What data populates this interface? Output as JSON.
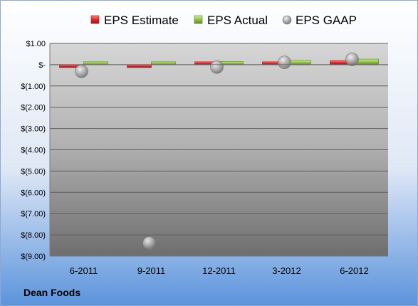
{
  "company_label": "Dean Foods",
  "chart_data": {
    "type": "bar",
    "categories": [
      "6-2011",
      "9-2011",
      "12-2011",
      "3-2012",
      "6-2012"
    ],
    "series": [
      {
        "name": "EPS Estimate",
        "kind": "bar",
        "color": "#e0262b",
        "values": [
          -0.04,
          -0.03,
          0.1,
          0.06,
          0.19
        ]
      },
      {
        "name": "EPS Actual",
        "kind": "bar",
        "color": "#92c145",
        "values": [
          0.06,
          0.05,
          0.15,
          0.2,
          0.26
        ]
      },
      {
        "name": "EPS GAAP",
        "kind": "bubble",
        "color": "#a9a9a9",
        "values": [
          -0.31,
          -8.38,
          -0.11,
          0.11,
          0.25
        ]
      }
    ],
    "yticks": [
      1.0,
      0.0,
      -1.0,
      -2.0,
      -3.0,
      -4.0,
      -5.0,
      -6.0,
      -7.0,
      -8.0,
      -9.0
    ],
    "ytick_labels": [
      "$1.00",
      "$-",
      "$(1.00)",
      "$(2.00)",
      "$(3.00)",
      "$(4.00)",
      "$(5.00)",
      "$(6.00)",
      "$(7.00)",
      "$(8.00)",
      "$(9.00)"
    ],
    "ylim": [
      -9.0,
      1.0
    ],
    "grid": true,
    "legend": "top",
    "title": "",
    "xlabel": "",
    "ylabel": ""
  }
}
